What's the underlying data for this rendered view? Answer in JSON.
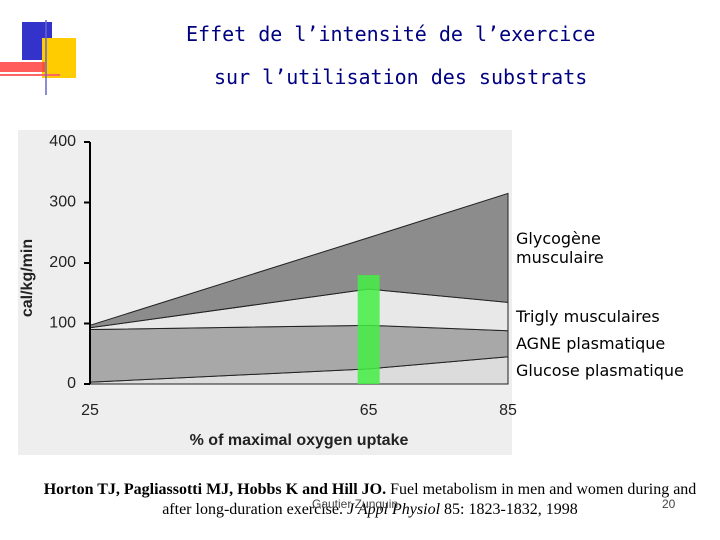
{
  "slide": {
    "title_lines": [
      "Effet de l’intensité de l’exercice",
      "sur l’utilisation des substrats"
    ],
    "citation": {
      "authors": "Horton TJ, Pagliassotti MJ, Hobbs K and Hill JO.",
      "text": "Fuel metabolism in men and women during and after long-duration exercise.",
      "journal": "J Appl Physiol",
      "ref": "85: 1823-1832, 1998"
    },
    "footer": "Gautier Zunquin",
    "page": "20"
  },
  "chart_data": {
    "type": "stacked_area",
    "xlabel": "% of maximal oxygen uptake",
    "ylabel": "cal/kg/min",
    "x": [
      25,
      65,
      85
    ],
    "series": [
      {
        "name": "Glucose plasmatique",
        "color": "#dcdcdc",
        "values": [
          3,
          25,
          45
        ]
      },
      {
        "name": "AGNE plasmatique",
        "color": "#a8a8a8",
        "values": [
          87,
          72,
          43
        ]
      },
      {
        "name": "Trigly musculaires",
        "color": "#e8e8e8",
        "values": [
          3,
          60,
          47
        ]
      },
      {
        "name": "Glycogène musculaire",
        "color": "#8c8c8c",
        "values": [
          4,
          85,
          180
        ]
      }
    ],
    "highlight": {
      "x": 65,
      "top": 180,
      "color": "#44ee44"
    },
    "xlim": [
      25,
      85
    ],
    "xticks": [
      25,
      65,
      85
    ],
    "ylim": [
      0,
      400
    ],
    "yticks": [
      0,
      100,
      200,
      300,
      400
    ]
  }
}
